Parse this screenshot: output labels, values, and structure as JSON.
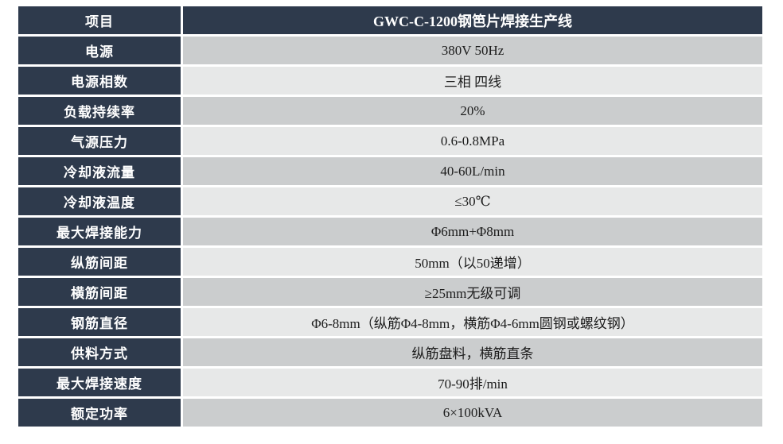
{
  "colors": {
    "page_background": "#ffffff",
    "header_bg": "#2e3a4c",
    "label_bg": "#2e3a4c",
    "row_gray_bg": "#cbcdce",
    "row_light_bg": "#e7e8e8",
    "label_text": "#ffffff",
    "value_text": "#1c1c1c",
    "grid_lines": "#ffffff"
  },
  "table": {
    "header": {
      "label": "项目",
      "title": "GWC-C-1200钢笆片焊接生产线"
    },
    "rows": [
      {
        "label": "电源",
        "value": "380V 50Hz"
      },
      {
        "label": "电源相数",
        "value": "三相 四线"
      },
      {
        "label": "负载持续率",
        "value": "20%"
      },
      {
        "label": "气源压力",
        "value": "0.6-0.8MPa"
      },
      {
        "label": "冷却液流量",
        "value": "40-60L/min"
      },
      {
        "label": "冷却液温度",
        "value": "≤30℃"
      },
      {
        "label": "最大焊接能力",
        "value": "Φ6mm+Φ8mm"
      },
      {
        "label": "纵筋间距",
        "value": "50mm（以50递增）"
      },
      {
        "label": "横筋间距",
        "value": "≥25mm无级可调"
      },
      {
        "label": "钢筋直径",
        "value": "Φ6-8mm（纵筋Φ4-8mm，横筋Φ4-6mm圆钢或螺纹钢）"
      },
      {
        "label": "供料方式",
        "value": "纵筋盘料，横筋直条"
      },
      {
        "label": "最大焊接速度",
        "value": "70-90排/min"
      },
      {
        "label": "额定功率",
        "value": "6×100kVA"
      }
    ]
  }
}
